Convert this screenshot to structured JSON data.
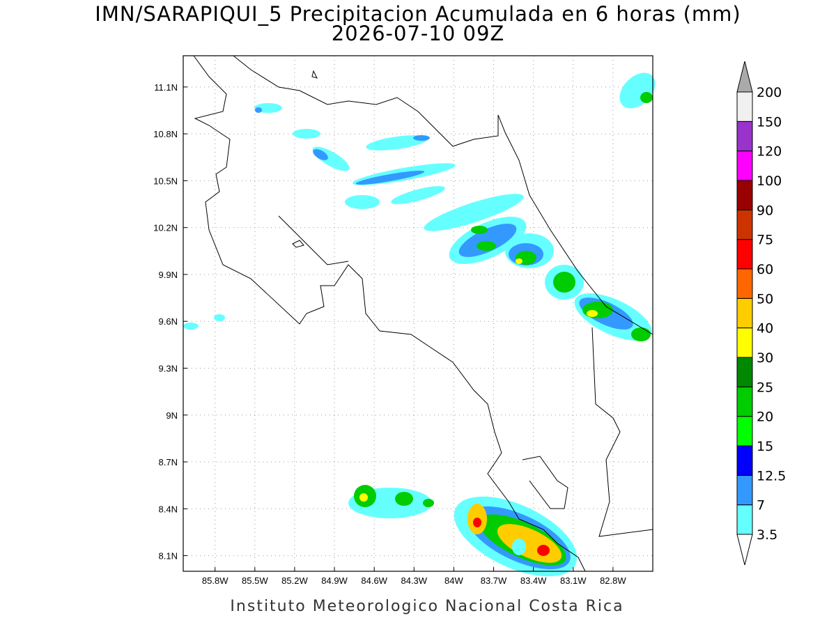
{
  "map": {
    "title": "IMN/SARAPIQUI_5 Precipitacion Acumulada en 6 horas (mm)",
    "subtitle": "2026-07-10 09Z",
    "footer": "Instituto Meteorologico Nacional Costa Rica",
    "lon_range": [
      -86.04,
      -82.5
    ],
    "lat_range": [
      8.0,
      11.3
    ],
    "lon_ticks": [
      {
        "value": -85.8,
        "label": "85.8W"
      },
      {
        "value": -85.5,
        "label": "85.5W"
      },
      {
        "value": -85.2,
        "label": "85.2W"
      },
      {
        "value": -84.9,
        "label": "84.9W"
      },
      {
        "value": -84.6,
        "label": "84.6W"
      },
      {
        "value": -84.3,
        "label": "84.3W"
      },
      {
        "value": -84.0,
        "label": "84W"
      },
      {
        "value": -83.7,
        "label": "83.7W"
      },
      {
        "value": -83.4,
        "label": "83.4W"
      },
      {
        "value": -83.1,
        "label": "83.1W"
      },
      {
        "value": -82.8,
        "label": "82.8W"
      }
    ],
    "lat_ticks": [
      {
        "value": 8.1,
        "label": "8.1N"
      },
      {
        "value": 8.4,
        "label": "8.4N"
      },
      {
        "value": 8.7,
        "label": "8.7N"
      },
      {
        "value": 9.0,
        "label": "9N"
      },
      {
        "value": 9.3,
        "label": "9.3N"
      },
      {
        "value": 9.6,
        "label": "9.6N"
      },
      {
        "value": 9.9,
        "label": "9.9N"
      },
      {
        "value": 10.2,
        "label": "10.2N"
      },
      {
        "value": 10.5,
        "label": "10.5N"
      },
      {
        "value": 10.8,
        "label": "10.8N"
      },
      {
        "value": 11.1,
        "label": "11.1N"
      }
    ],
    "grid": true,
    "colorbar": {
      "levels": [
        3.5,
        7,
        12.5,
        15,
        20,
        25,
        30,
        40,
        50,
        60,
        75,
        90,
        100,
        120,
        150,
        200
      ],
      "colors": [
        "#66ffff",
        "#3399ff",
        "#0000ff",
        "#00ff00",
        "#00cc00",
        "#008800",
        "#ffff00",
        "#ffcc00",
        "#ff6600",
        "#ff0000",
        "#cc3300",
        "#990000",
        "#ff00ff",
        "#9933cc",
        "#f0f0f0"
      ],
      "under_color": "#ffffff",
      "over_color": "#aaaaaa"
    }
  }
}
